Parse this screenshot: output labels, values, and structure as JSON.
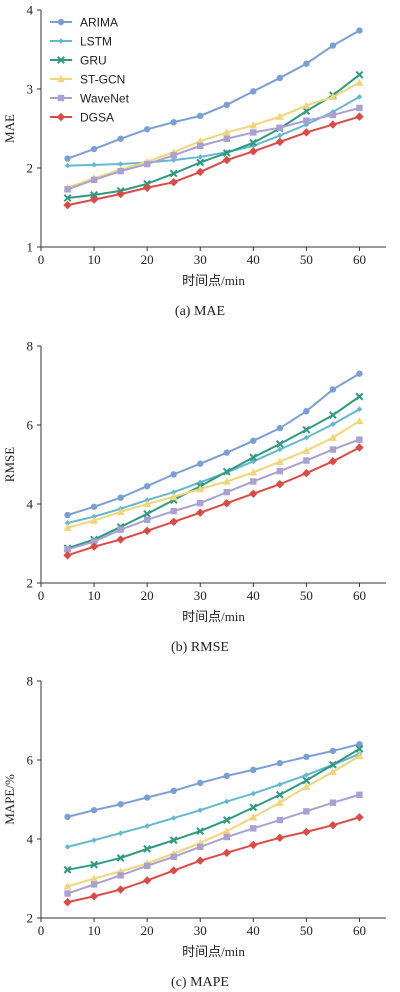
{
  "colors": {
    "ARIMA": "#7a9fd6",
    "LSTM": "#62b9cf",
    "GRU": "#2e9a7e",
    "ST-GCN": "#f1d57a",
    "WaveNet": "#a9a0d3",
    "DGSA": "#db4a44"
  },
  "markers": {
    "ARIMA": "circle",
    "LSTM": "diamond-small",
    "GRU": "x",
    "ST-GCN": "triangle",
    "WaveNet": "square",
    "DGSA": "diamond"
  },
  "chart_data": [
    {
      "type": "line",
      "caption": "(a)  MAE",
      "xlabel": "时间点/min",
      "ylabel": "MAE",
      "xlim": [
        0,
        65
      ],
      "ylim": [
        1,
        4
      ],
      "xticks": [
        "0",
        "10",
        "20",
        "30",
        "40",
        "50",
        "60"
      ],
      "yticks": [
        "1",
        "2",
        "3",
        "4"
      ],
      "x": [
        5,
        10,
        15,
        20,
        25,
        30,
        35,
        40,
        45,
        50,
        55,
        60
      ],
      "legend_position": "top-left",
      "series": [
        {
          "name": "ARIMA",
          "values": [
            2.12,
            2.24,
            2.37,
            2.49,
            2.58,
            2.66,
            2.8,
            2.97,
            3.14,
            3.32,
            3.55,
            3.74
          ]
        },
        {
          "name": "LSTM",
          "values": [
            2.03,
            2.04,
            2.05,
            2.07,
            2.1,
            2.14,
            2.2,
            2.28,
            2.41,
            2.55,
            2.71,
            2.9
          ]
        },
        {
          "name": "GRU",
          "values": [
            1.62,
            1.66,
            1.71,
            1.8,
            1.93,
            2.07,
            2.19,
            2.32,
            2.5,
            2.72,
            2.92,
            3.18
          ]
        },
        {
          "name": "ST-GCN",
          "values": [
            1.75,
            1.87,
            1.98,
            2.08,
            2.2,
            2.34,
            2.45,
            2.54,
            2.65,
            2.79,
            2.9,
            3.08
          ]
        },
        {
          "name": "WaveNet",
          "values": [
            1.73,
            1.85,
            1.96,
            2.05,
            2.16,
            2.28,
            2.37,
            2.45,
            2.51,
            2.6,
            2.67,
            2.76
          ]
        },
        {
          "name": "DGSA",
          "values": [
            1.53,
            1.6,
            1.67,
            1.75,
            1.82,
            1.95,
            2.1,
            2.21,
            2.33,
            2.45,
            2.55,
            2.65
          ]
        }
      ]
    },
    {
      "type": "line",
      "caption": "(b)  RMSE",
      "xlabel": "时间点/min",
      "ylabel": "RMSE",
      "xlim": [
        0,
        65
      ],
      "ylim": [
        2,
        8
      ],
      "xticks": [
        "0",
        "10",
        "20",
        "30",
        "40",
        "50",
        "60"
      ],
      "yticks": [
        "2",
        "4",
        "6",
        "8"
      ],
      "x": [
        5,
        10,
        15,
        20,
        25,
        30,
        35,
        40,
        45,
        50,
        55,
        60
      ],
      "series": [
        {
          "name": "ARIMA",
          "values": [
            3.72,
            3.93,
            4.16,
            4.45,
            4.75,
            5.02,
            5.3,
            5.6,
            5.92,
            6.35,
            6.9,
            7.3
          ]
        },
        {
          "name": "LSTM",
          "values": [
            3.52,
            3.68,
            3.88,
            4.1,
            4.3,
            4.55,
            4.8,
            5.08,
            5.38,
            5.68,
            6.02,
            6.4
          ]
        },
        {
          "name": "GRU",
          "values": [
            2.88,
            3.1,
            3.42,
            3.75,
            4.1,
            4.45,
            4.82,
            5.18,
            5.52,
            5.88,
            6.25,
            6.72
          ]
        },
        {
          "name": "ST-GCN",
          "values": [
            3.4,
            3.58,
            3.8,
            4.0,
            4.18,
            4.38,
            4.57,
            4.8,
            5.07,
            5.35,
            5.68,
            6.1
          ]
        },
        {
          "name": "WaveNet",
          "values": [
            2.85,
            3.05,
            3.35,
            3.6,
            3.82,
            4.02,
            4.3,
            4.57,
            4.83,
            5.1,
            5.38,
            5.63
          ]
        },
        {
          "name": "DGSA",
          "values": [
            2.7,
            2.92,
            3.1,
            3.32,
            3.55,
            3.78,
            4.02,
            4.26,
            4.5,
            4.78,
            5.08,
            5.43
          ]
        }
      ]
    },
    {
      "type": "line",
      "caption": "(c)  MAPE",
      "xlabel": "时间点/min",
      "ylabel": "MAPE/%",
      "xlim": [
        0,
        65
      ],
      "ylim": [
        2,
        8
      ],
      "xticks": [
        "0",
        "10",
        "20",
        "30",
        "40",
        "50",
        "60"
      ],
      "yticks": [
        "2",
        "4",
        "6",
        "8"
      ],
      "x": [
        5,
        10,
        15,
        20,
        25,
        30,
        35,
        40,
        45,
        50,
        55,
        60
      ],
      "series": [
        {
          "name": "ARIMA",
          "values": [
            4.56,
            4.73,
            4.88,
            5.05,
            5.22,
            5.42,
            5.6,
            5.75,
            5.92,
            6.08,
            6.23,
            6.4
          ]
        },
        {
          "name": "LSTM",
          "values": [
            3.8,
            3.97,
            4.15,
            4.33,
            4.53,
            4.73,
            4.95,
            5.15,
            5.38,
            5.62,
            5.88,
            6.15
          ]
        },
        {
          "name": "GRU",
          "values": [
            3.22,
            3.35,
            3.52,
            3.75,
            3.97,
            4.2,
            4.48,
            4.8,
            5.12,
            5.48,
            5.88,
            6.28
          ]
        },
        {
          "name": "ST-GCN",
          "values": [
            2.8,
            3.0,
            3.18,
            3.38,
            3.63,
            3.9,
            4.2,
            4.55,
            4.92,
            5.32,
            5.7,
            6.1
          ]
        },
        {
          "name": "WaveNet",
          "values": [
            2.62,
            2.85,
            3.08,
            3.32,
            3.55,
            3.8,
            4.05,
            4.27,
            4.48,
            4.7,
            4.92,
            5.12
          ]
        },
        {
          "name": "DGSA",
          "values": [
            2.4,
            2.55,
            2.72,
            2.95,
            3.2,
            3.45,
            3.65,
            3.85,
            4.03,
            4.18,
            4.35,
            4.55
          ]
        }
      ]
    }
  ]
}
